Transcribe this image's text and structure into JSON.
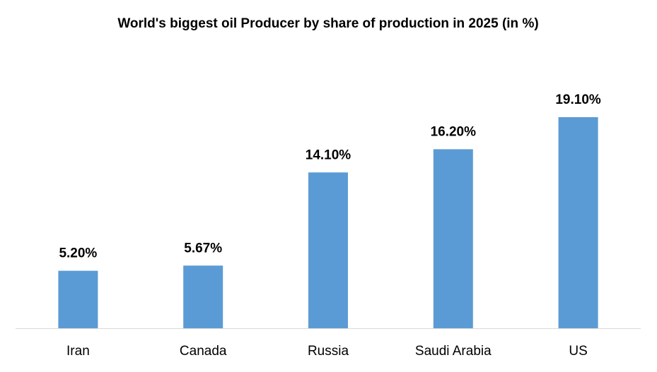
{
  "chart_data": {
    "type": "bar",
    "title": "World's biggest oil Producer by share of production in 2025 (in %)",
    "categories": [
      "Iran",
      "Canada",
      "Russia",
      "Saudi Arabia",
      "US"
    ],
    "values": [
      5.2,
      5.67,
      14.1,
      16.2,
      19.1
    ],
    "value_labels": [
      "5.20%",
      "5.67%",
      "14.10%",
      "16.20%",
      "19.10%"
    ],
    "color": "#5b9bd5"
  }
}
